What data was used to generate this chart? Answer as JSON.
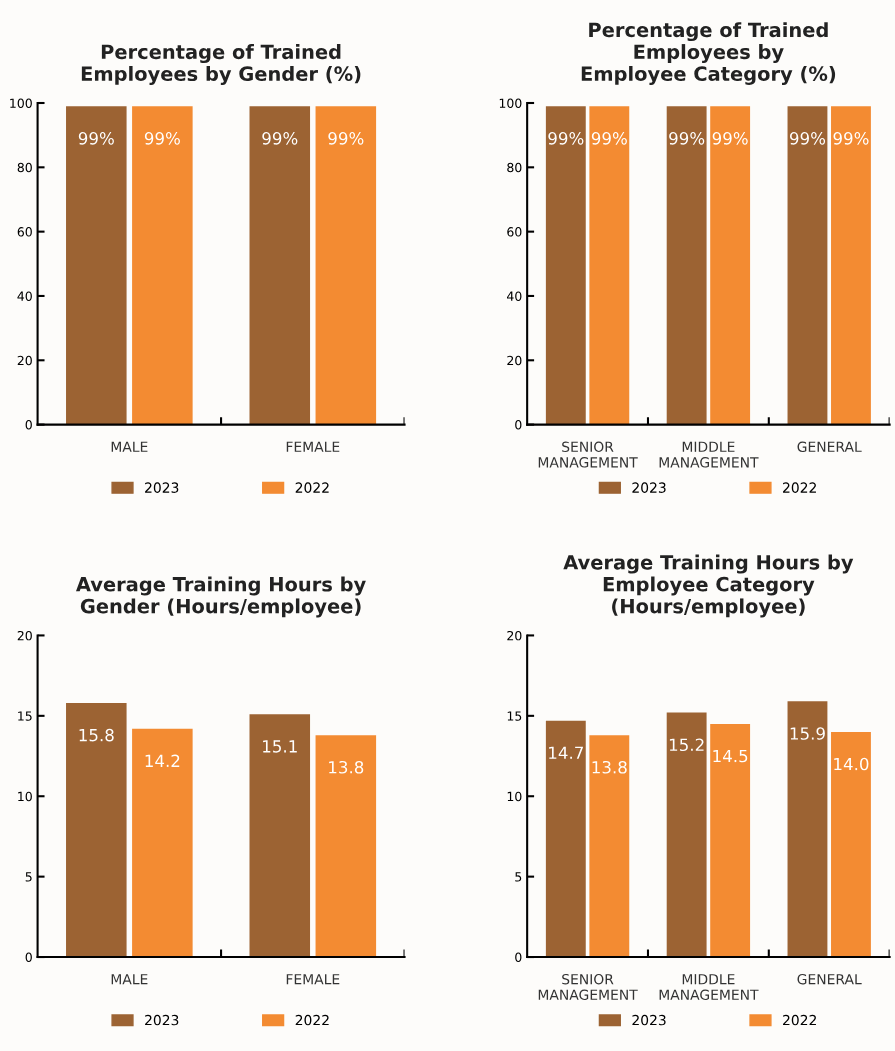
{
  "chart_data": [
    {
      "type": "bar",
      "title": "Percentage of Trained\nEmployees by Gender (%)",
      "categories": [
        "MALE",
        "FEMALE"
      ],
      "ylim": [
        0,
        100
      ],
      "yticks": [
        0,
        20,
        40,
        60,
        80,
        100
      ],
      "legend": "bottom",
      "series": [
        {
          "name": "2023",
          "color": "#9c6333",
          "values": [
            99,
            99
          ],
          "value_labels": [
            "99%",
            "99%"
          ]
        },
        {
          "name": "2022",
          "color": "#f38b32",
          "values": [
            99,
            99
          ],
          "value_labels": [
            "99%",
            "99%"
          ]
        }
      ]
    },
    {
      "type": "bar",
      "title": "Percentage of Trained\nEmployees by\nEmployee Category (%)",
      "categories": [
        "SENIOR\nMANAGEMENT",
        "MIDDLE\nMANAGEMENT",
        "GENERAL"
      ],
      "ylim": [
        0,
        100
      ],
      "yticks": [
        0,
        20,
        40,
        60,
        80,
        100
      ],
      "legend": "bottom",
      "series": [
        {
          "name": "2023",
          "color": "#9c6333",
          "values": [
            99,
            99,
            99
          ],
          "value_labels": [
            "99%",
            "99%",
            "99%"
          ]
        },
        {
          "name": "2022",
          "color": "#f38b32",
          "values": [
            99,
            99,
            99
          ],
          "value_labels": [
            "99%",
            "99%",
            "99%"
          ]
        }
      ]
    },
    {
      "type": "bar",
      "title": "Average Training Hours by\nGender (Hours/employee)",
      "categories": [
        "MALE",
        "FEMALE"
      ],
      "ylim": [
        0,
        20
      ],
      "yticks": [
        0,
        5,
        10,
        15,
        20
      ],
      "legend": "bottom",
      "series": [
        {
          "name": "2023",
          "color": "#9c6333",
          "values": [
            15.8,
            15.1
          ],
          "value_labels": [
            "15.8",
            "15.1"
          ]
        },
        {
          "name": "2022",
          "color": "#f38b32",
          "values": [
            14.2,
            13.8
          ],
          "value_labels": [
            "14.2",
            "13.8"
          ]
        }
      ]
    },
    {
      "type": "bar",
      "title": "Average Training Hours by\nEmployee Category\n(Hours/employee)",
      "categories": [
        "SENIOR\nMANAGEMENT",
        "MIDDLE\nMANAGEMENT",
        "GENERAL"
      ],
      "ylim": [
        0,
        20
      ],
      "yticks": [
        0,
        5,
        10,
        15,
        20
      ],
      "legend": "bottom",
      "series": [
        {
          "name": "2023",
          "color": "#9c6333",
          "values": [
            14.7,
            15.2,
            15.9
          ],
          "value_labels": [
            "14.7",
            "15.2",
            "15.9"
          ]
        },
        {
          "name": "2022",
          "color": "#f38b32",
          "values": [
            13.8,
            14.5,
            14.0
          ],
          "value_labels": [
            "13.8",
            "14.5",
            "14.0"
          ]
        }
      ]
    }
  ]
}
